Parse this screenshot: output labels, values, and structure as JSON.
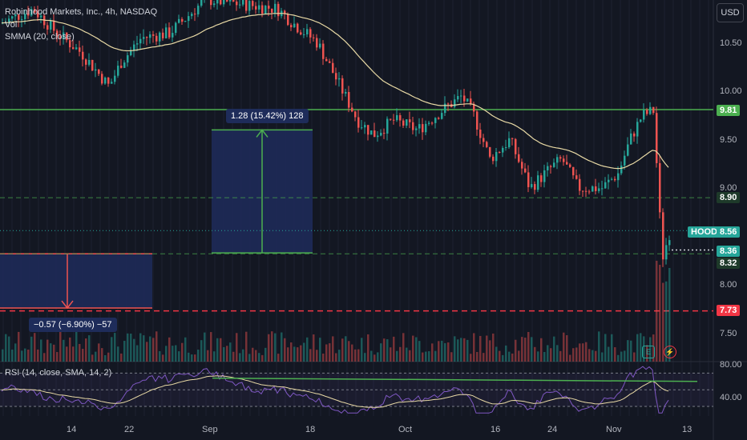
{
  "header": {
    "symbol_title": "Robinhood Markets, Inc., 4h, NASDAQ",
    "vol_label": "Vol",
    "smma_label": "SMMA (20, close)",
    "currency_button": "USD"
  },
  "price_axis": {
    "ticks": [
      "10.50",
      "10.00",
      "9.50",
      "9.00",
      "8.00",
      "7.50"
    ],
    "tags": [
      {
        "label": "9.81",
        "color": "#4caf50"
      },
      {
        "label": "8.90",
        "color": "#1e3a2a"
      },
      {
        "label": "8.56",
        "color": "#26a69a"
      },
      {
        "label": "8.36",
        "color": "#26a69a"
      },
      {
        "label": "8.32",
        "color": "#1e3a2a"
      },
      {
        "label": "7.73",
        "color": "#f23645"
      }
    ],
    "ticker_tag": "HOOD"
  },
  "measurements": {
    "up_label": "1.28 (15.42%) 128",
    "down_label": "−0.57 (−6.90%) −57"
  },
  "rsi": {
    "label": "RSI (14, close, SMA, 14, 2)",
    "ticks": [
      "80.00",
      "40.00"
    ]
  },
  "time_axis": {
    "ticks": [
      "14",
      "22",
      "Sep",
      "18",
      "Oct",
      "16",
      "24",
      "Nov",
      "13"
    ]
  },
  "event_icons": {
    "earnings": "E",
    "split": "⚡"
  },
  "colors": {
    "background": "#131722",
    "bull": "#26a69a",
    "bear": "#ef5350",
    "green_line": "#4caf50",
    "red_line": "#f23645",
    "smma": "#e8d9a5",
    "measure_fill": "#1e2c5a"
  }
}
